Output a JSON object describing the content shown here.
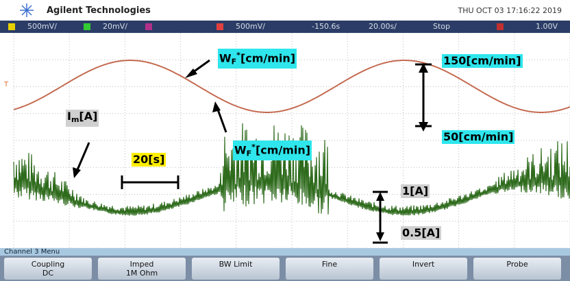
{
  "header": {
    "brand": "Agilent Technologies",
    "datetime": "THU OCT 03 17:16:22 2019"
  },
  "status_bar": {
    "ch1_scale": "500mV/",
    "ch2_scale": "20mV/",
    "ch4_scale": "500mV/",
    "delay": "-150.6s",
    "timebase": "20.00s/",
    "run_state": "Stop",
    "trigger_level": "1.00V"
  },
  "annotations": {
    "wf_upper": {
      "base": "W",
      "sub": "F",
      "sup": "*",
      "rest": "[cm/min]"
    },
    "wf_lower": {
      "base": "W",
      "sub": "F",
      "sup": "*",
      "rest": "[cm/min]"
    },
    "speed_high": "150[cm/min]",
    "speed_low": "50[cm/min]",
    "current": {
      "base": "I",
      "sub": "m",
      "rest": "[A]"
    },
    "time_span": "20[s]",
    "current_high": "1[A]",
    "current_low": "0.5[A]"
  },
  "menu": {
    "title": "Channel 3 Menu",
    "softkeys": [
      {
        "label": "Coupling",
        "value": "DC"
      },
      {
        "label": "Imped",
        "value": "1M Ohm"
      },
      {
        "label": "BW Limit"
      },
      {
        "label": "Fine"
      },
      {
        "label": "Invert"
      },
      {
        "label": "Probe"
      }
    ]
  }
}
